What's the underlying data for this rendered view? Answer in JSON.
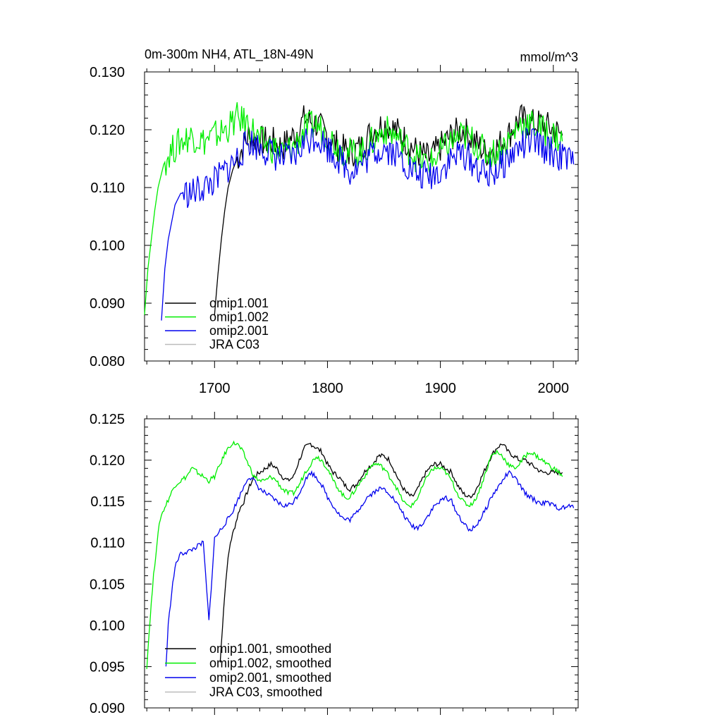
{
  "chart_data": [
    {
      "type": "line",
      "title": "0m-300m NH4, ATL_18N-49N",
      "units": "mmol/m^3",
      "xlabel": "",
      "ylabel": "",
      "xlim": [
        1638,
        2022
      ],
      "ylim": [
        0.08,
        0.13
      ],
      "xticks": [
        1700,
        1800,
        1900,
        2000
      ],
      "xtick_labels": [
        "1700",
        "1800",
        "1900",
        "2000"
      ],
      "yticks": [
        0.08,
        0.09,
        0.1,
        0.11,
        0.12,
        0.13
      ],
      "ytick_labels": [
        "0.080",
        "0.090",
        "0.100",
        "0.110",
        "0.120",
        "0.130"
      ],
      "legend_position": "bottom-left",
      "series": [
        {
          "name": "omip1.001",
          "color": "#000000",
          "x": [
            1700,
            1703,
            1706,
            1709,
            1712,
            1716,
            1720,
            1725,
            1730,
            1740,
            1750,
            1760,
            1770,
            1780,
            1790,
            1800,
            1810,
            1820,
            1830,
            1840,
            1850,
            1860,
            1870,
            1880,
            1890,
            1900,
            1910,
            1920,
            1930,
            1940,
            1950,
            1960,
            1970,
            1980,
            1990,
            2000,
            2008
          ],
          "y": [
            0.088,
            0.095,
            0.101,
            0.106,
            0.11,
            0.113,
            0.115,
            0.117,
            0.119,
            0.118,
            0.118,
            0.117,
            0.119,
            0.122,
            0.121,
            0.119,
            0.117,
            0.116,
            0.117,
            0.12,
            0.121,
            0.12,
            0.118,
            0.116,
            0.115,
            0.117,
            0.119,
            0.12,
            0.118,
            0.116,
            0.117,
            0.119,
            0.122,
            0.121,
            0.121,
            0.12,
            0.119
          ]
        },
        {
          "name": "omip1.002",
          "color": "#00ee00",
          "x": [
            1638,
            1641,
            1644,
            1647,
            1650,
            1655,
            1660,
            1670,
            1680,
            1690,
            1700,
            1710,
            1720,
            1730,
            1740,
            1750,
            1760,
            1770,
            1780,
            1790,
            1800,
            1810,
            1820,
            1830,
            1840,
            1850,
            1860,
            1870,
            1880,
            1890,
            1900,
            1910,
            1920,
            1930,
            1940,
            1950,
            1960,
            1970,
            1980,
            1990,
            2000,
            2008
          ],
          "y": [
            0.088,
            0.096,
            0.101,
            0.106,
            0.11,
            0.114,
            0.116,
            0.118,
            0.119,
            0.118,
            0.119,
            0.12,
            0.122,
            0.121,
            0.118,
            0.117,
            0.116,
            0.117,
            0.12,
            0.121,
            0.119,
            0.117,
            0.116,
            0.116,
            0.118,
            0.12,
            0.119,
            0.117,
            0.115,
            0.114,
            0.116,
            0.118,
            0.119,
            0.118,
            0.116,
            0.116,
            0.118,
            0.121,
            0.121,
            0.12,
            0.119,
            0.118
          ]
        },
        {
          "name": "omip2.001",
          "color": "#0000ee",
          "x": [
            1653,
            1656,
            1659,
            1662,
            1665,
            1670,
            1680,
            1690,
            1700,
            1710,
            1720,
            1730,
            1740,
            1750,
            1760,
            1770,
            1780,
            1790,
            1800,
            1810,
            1820,
            1830,
            1840,
            1850,
            1860,
            1870,
            1880,
            1890,
            1900,
            1910,
            1920,
            1930,
            1940,
            1950,
            1960,
            1970,
            1980,
            1990,
            2000,
            2010,
            2018
          ],
          "y": [
            0.087,
            0.096,
            0.101,
            0.104,
            0.107,
            0.109,
            0.109,
            0.11,
            0.111,
            0.113,
            0.115,
            0.118,
            0.117,
            0.116,
            0.115,
            0.115,
            0.118,
            0.119,
            0.117,
            0.115,
            0.113,
            0.114,
            0.116,
            0.117,
            0.116,
            0.114,
            0.112,
            0.112,
            0.113,
            0.115,
            0.116,
            0.114,
            0.112,
            0.113,
            0.115,
            0.117,
            0.118,
            0.117,
            0.116,
            0.115,
            0.114
          ]
        },
        {
          "name": "JRA C03",
          "color": "#bbbbbb",
          "x": [],
          "y": []
        }
      ]
    },
    {
      "type": "line",
      "title": "",
      "xlabel": "",
      "ylabel": "",
      "xlim": [
        1638,
        2022
      ],
      "ylim": [
        0.09,
        0.125
      ],
      "xticks": [
        1700,
        1800,
        1900,
        2000
      ],
      "yticks": [
        0.09,
        0.095,
        0.1,
        0.105,
        0.11,
        0.115,
        0.12,
        0.125
      ],
      "ytick_labels": [
        "0.090",
        "0.095",
        "0.100",
        "0.105",
        "0.110",
        "0.115",
        "0.120",
        "0.125"
      ],
      "legend_position": "bottom-left",
      "series": [
        {
          "name": "omip1.001, smoothed",
          "color": "#000000",
          "x": [
            1705,
            1708,
            1711,
            1714,
            1718,
            1722,
            1726,
            1730,
            1735,
            1740,
            1745,
            1750,
            1755,
            1760,
            1765,
            1770,
            1775,
            1780,
            1785,
            1790,
            1795,
            1800,
            1805,
            1810,
            1815,
            1820,
            1825,
            1830,
            1835,
            1840,
            1845,
            1850,
            1855,
            1860,
            1865,
            1870,
            1875,
            1880,
            1885,
            1890,
            1895,
            1900,
            1905,
            1910,
            1915,
            1920,
            1925,
            1930,
            1935,
            1940,
            1945,
            1950,
            1955,
            1960,
            1965,
            1970,
            1975,
            1980,
            1985,
            1990,
            1995,
            2000,
            2005,
            2008
          ],
          "y": [
            0.0955,
            0.102,
            0.107,
            0.11,
            0.112,
            0.114,
            0.115,
            0.1165,
            0.118,
            0.1185,
            0.119,
            0.1195,
            0.119,
            0.118,
            0.1175,
            0.118,
            0.12,
            0.1215,
            0.122,
            0.1215,
            0.121,
            0.1195,
            0.1185,
            0.118,
            0.117,
            0.1165,
            0.117,
            0.118,
            0.119,
            0.1195,
            0.1205,
            0.1205,
            0.12,
            0.1185,
            0.117,
            0.116,
            0.1155,
            0.1165,
            0.118,
            0.119,
            0.1195,
            0.1195,
            0.119,
            0.1185,
            0.117,
            0.116,
            0.1155,
            0.116,
            0.1175,
            0.119,
            0.1205,
            0.1215,
            0.122,
            0.121,
            0.1205,
            0.12,
            0.12,
            0.1195,
            0.119,
            0.1185,
            0.1185,
            0.1185,
            0.1185,
            0.1185
          ]
        },
        {
          "name": "omip1.002, smoothed",
          "color": "#00ee00",
          "x": [
            1640,
            1643,
            1646,
            1649,
            1652,
            1655,
            1660,
            1665,
            1670,
            1675,
            1680,
            1685,
            1690,
            1695,
            1700,
            1705,
            1710,
            1715,
            1720,
            1725,
            1730,
            1735,
            1740,
            1745,
            1750,
            1755,
            1760,
            1765,
            1770,
            1775,
            1780,
            1785,
            1790,
            1795,
            1800,
            1805,
            1810,
            1815,
            1820,
            1825,
            1830,
            1835,
            1840,
            1845,
            1850,
            1855,
            1860,
            1865,
            1870,
            1875,
            1880,
            1885,
            1890,
            1895,
            1900,
            1905,
            1910,
            1915,
            1920,
            1925,
            1930,
            1935,
            1940,
            1945,
            1950,
            1955,
            1960,
            1965,
            1970,
            1975,
            1980,
            1985,
            1990,
            1995,
            2000,
            2005,
            2008
          ],
          "y": [
            0.095,
            0.101,
            0.106,
            0.11,
            0.113,
            0.114,
            0.1155,
            0.117,
            0.1175,
            0.118,
            0.119,
            0.1185,
            0.118,
            0.1175,
            0.118,
            0.1195,
            0.121,
            0.122,
            0.122,
            0.121,
            0.1195,
            0.118,
            0.1175,
            0.1175,
            0.118,
            0.1175,
            0.1165,
            0.116,
            0.116,
            0.117,
            0.1185,
            0.1195,
            0.1205,
            0.12,
            0.119,
            0.1175,
            0.1165,
            0.1155,
            0.1155,
            0.1165,
            0.1175,
            0.1185,
            0.1195,
            0.1195,
            0.119,
            0.118,
            0.117,
            0.1155,
            0.1145,
            0.1145,
            0.1155,
            0.117,
            0.1185,
            0.119,
            0.119,
            0.1185,
            0.1175,
            0.116,
            0.115,
            0.1145,
            0.115,
            0.1165,
            0.1185,
            0.1205,
            0.121,
            0.1205,
            0.1195,
            0.119,
            0.1195,
            0.1205,
            0.121,
            0.1205,
            0.12,
            0.1195,
            0.119,
            0.1185,
            0.118
          ]
        },
        {
          "name": "omip2.001, smoothed",
          "color": "#0000ee",
          "x": [
            1657,
            1659,
            1662,
            1665,
            1669,
            1673,
            1678,
            1684,
            1690,
            1695,
            1700,
            1705,
            1710,
            1715,
            1720,
            1725,
            1730,
            1735,
            1740,
            1745,
            1750,
            1755,
            1760,
            1765,
            1770,
            1775,
            1780,
            1785,
            1790,
            1795,
            1800,
            1805,
            1810,
            1815,
            1820,
            1825,
            1830,
            1835,
            1840,
            1845,
            1850,
            1855,
            1860,
            1865,
            1870,
            1875,
            1880,
            1885,
            1890,
            1895,
            1900,
            1905,
            1910,
            1915,
            1920,
            1925,
            1930,
            1935,
            1940,
            1945,
            1950,
            1955,
            1960,
            1965,
            1970,
            1975,
            1980,
            1985,
            1990,
            1995,
            2000,
            2005,
            2010,
            2015,
            2018
          ],
          "y": [
            0.095,
            0.1,
            0.104,
            0.107,
            0.1085,
            0.1088,
            0.109,
            0.1095,
            0.11,
            0.1005,
            0.1105,
            0.1115,
            0.1125,
            0.1135,
            0.115,
            0.1165,
            0.118,
            0.1175,
            0.1165,
            0.116,
            0.1155,
            0.115,
            0.1145,
            0.1145,
            0.115,
            0.116,
            0.1175,
            0.1185,
            0.118,
            0.117,
            0.1155,
            0.1145,
            0.1135,
            0.1128,
            0.1128,
            0.1135,
            0.1145,
            0.1155,
            0.116,
            0.1165,
            0.1165,
            0.116,
            0.115,
            0.114,
            0.1128,
            0.112,
            0.1118,
            0.1125,
            0.1135,
            0.1145,
            0.115,
            0.1155,
            0.115,
            0.1135,
            0.1125,
            0.1115,
            0.1118,
            0.1128,
            0.114,
            0.1155,
            0.1165,
            0.1175,
            0.1185,
            0.118,
            0.117,
            0.116,
            0.1155,
            0.115,
            0.1148,
            0.1148,
            0.1145,
            0.1142,
            0.1142,
            0.1145,
            0.1142
          ]
        },
        {
          "name": "JRA C03, smoothed",
          "color": "#bbbbbb",
          "x": [],
          "y": []
        }
      ]
    }
  ]
}
